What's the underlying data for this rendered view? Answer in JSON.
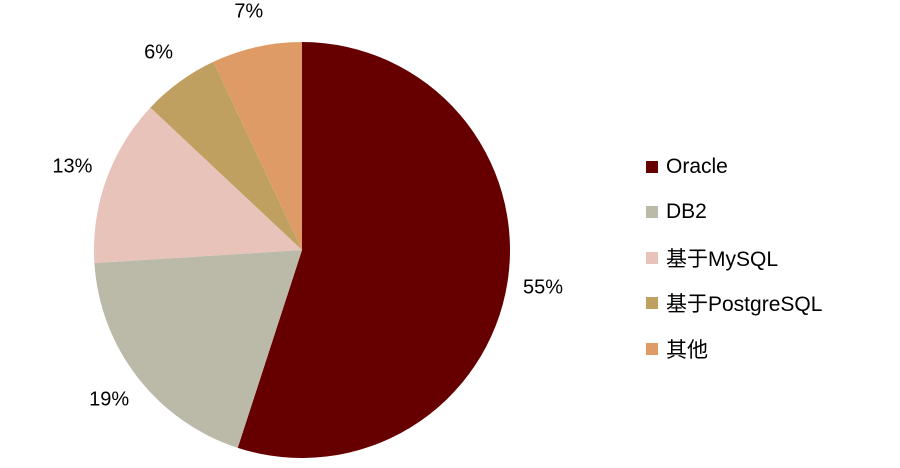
{
  "chart_data": {
    "type": "pie",
    "title": "",
    "start_angle": "top, clockwise",
    "legend_position": "right",
    "slices": [
      {
        "label": "Oracle",
        "value": 55,
        "display": "55%",
        "color": "#660000"
      },
      {
        "label": "DB2",
        "value": 19,
        "display": "19%",
        "color": "#BBB9A8"
      },
      {
        "label": "基于MySQL",
        "value": 13,
        "display": "13%",
        "color": "#E8C3B9"
      },
      {
        "label": "基于PostgreSQL",
        "value": 6,
        "display": "6%",
        "color": "#BFA061"
      },
      {
        "label": "其他",
        "value": 7,
        "display": "7%",
        "color": "#DF9B66"
      }
    ]
  }
}
